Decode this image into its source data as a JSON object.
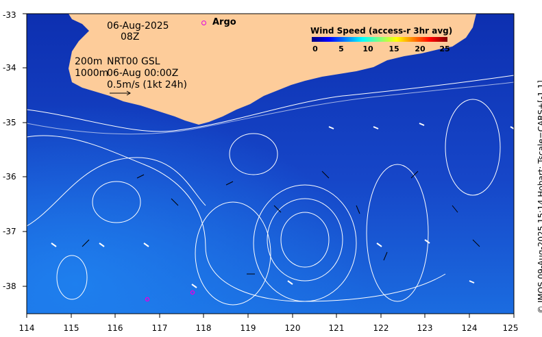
{
  "map": {
    "date": "06-Aug-2025",
    "hour": "08Z",
    "depth_200": "200m",
    "depth_1000": "1000m",
    "run": "NRT00 GSL",
    "run_time": "06-Aug 00:00Z",
    "arrow_scale": "0.5m/s (1kt 24h)",
    "argo_label": "Argo",
    "legend_title": "Wind Speed (access-r 3hr avg)",
    "legend_ticks": [
      "0",
      "5",
      "10",
      "15",
      "20",
      "25"
    ],
    "x_ticks": [
      "114",
      "115",
      "116",
      "117",
      "118",
      "119",
      "120",
      "121",
      "122",
      "123",
      "124",
      "125"
    ],
    "y_ticks": [
      "-33",
      "-34",
      "-35",
      "-36",
      "-37",
      "-38"
    ],
    "side_caption": "© IMOS 09-Aug-2025 15:14 Hobart; Tscale=CARS+[-1 1]",
    "colors": {
      "land": "#fdcc9a",
      "ocean_deep": "#0a2aa8",
      "ocean_light": "#1f6fe0",
      "argo": "#e100e1"
    }
  }
}
